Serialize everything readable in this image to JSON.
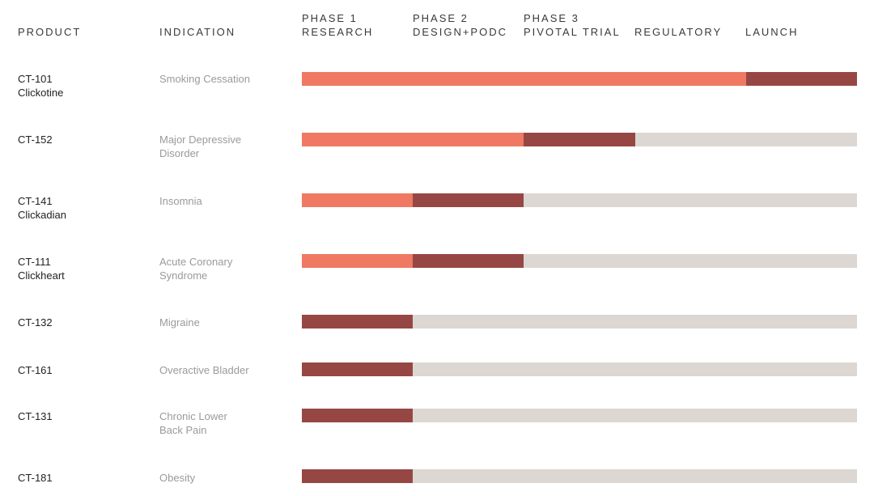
{
  "header": {
    "product": "PRODUCT",
    "indication": "INDICATION",
    "phases": [
      {
        "line1": "PHASE 1",
        "line2": "RESEARCH"
      },
      {
        "line1": "PHASE 2",
        "line2": "DESIGN+PODC"
      },
      {
        "line1": "PHASE 3",
        "line2": "PIVOTAL TRIAL"
      },
      {
        "line1": "",
        "line2": "REGULATORY"
      },
      {
        "line1": "",
        "line2": "LAUNCH"
      }
    ]
  },
  "colors": {
    "completed": "#ef7962",
    "current": "#964744",
    "remaining": "#dcd7d2"
  },
  "pipeline": [
    {
      "code": "CT-101",
      "name": "Clickotine",
      "indication_l1": "Smoking Cessation",
      "indication_l2": "",
      "completed_stages": 4,
      "current_stages": 1
    },
    {
      "code": "CT-152",
      "name": "",
      "indication_l1": "Major Depressive",
      "indication_l2": "Disorder",
      "completed_stages": 2,
      "current_stages": 1
    },
    {
      "code": "CT-141",
      "name": "Clickadian",
      "indication_l1": "Insomnia",
      "indication_l2": "",
      "completed_stages": 1,
      "current_stages": 1
    },
    {
      "code": "CT-111",
      "name": "Clickheart",
      "indication_l1": "Acute Coronary",
      "indication_l2": "Syndrome",
      "completed_stages": 1,
      "current_stages": 1
    },
    {
      "code": "CT-132",
      "name": "",
      "indication_l1": "Migraine",
      "indication_l2": "",
      "completed_stages": 0,
      "current_stages": 1
    },
    {
      "code": "CT-161",
      "name": "",
      "indication_l1": "Overactive Bladder",
      "indication_l2": "",
      "completed_stages": 0,
      "current_stages": 1
    },
    {
      "code": "CT-131",
      "name": "",
      "indication_l1": "Chronic Lower",
      "indication_l2": "Back Pain",
      "completed_stages": 0,
      "current_stages": 1
    },
    {
      "code": "CT-181",
      "name": "",
      "indication_l1": "Obesity",
      "indication_l2": "",
      "completed_stages": 0,
      "current_stages": 1
    }
  ]
}
